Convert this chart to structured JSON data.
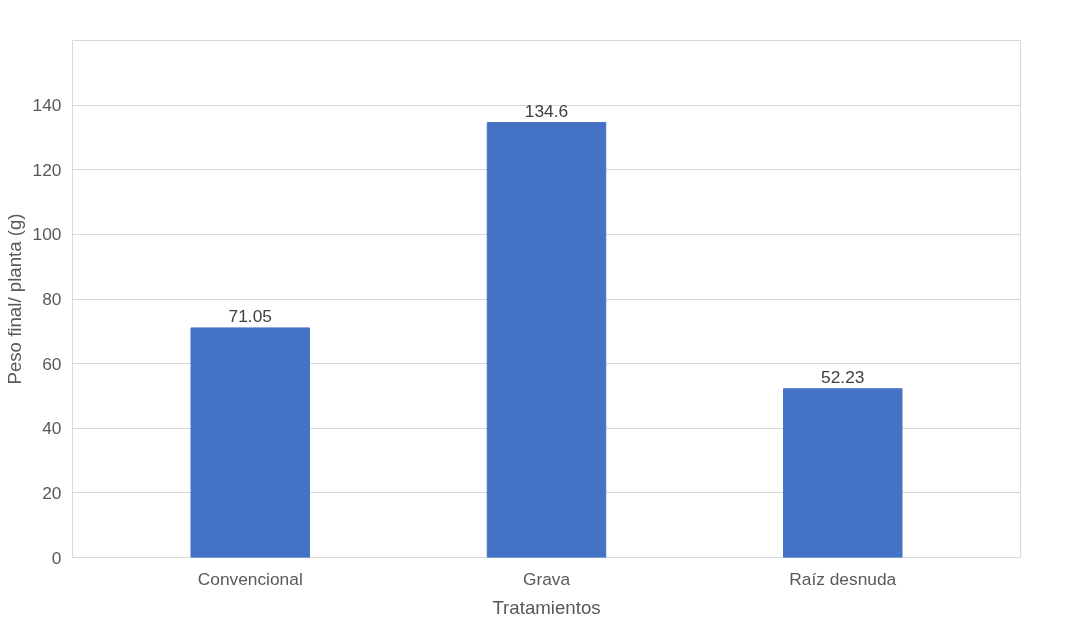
{
  "chart_data": {
    "type": "bar",
    "xlabel": "Tratamientos",
    "ylabel": "Peso final/ planta (g)",
    "categories": [
      "Convencional",
      "Grava",
      "Raíz desnuda"
    ],
    "values": [
      71.05,
      134.6,
      52.23
    ],
    "color": "#4472c4",
    "ylim": [
      0,
      160
    ],
    "yticks": [
      0,
      20,
      40,
      60,
      80,
      100,
      120,
      140,
      {
        "value": 160,
        "label": null
      }
    ],
    "grid": "y",
    "data_labels": true
  }
}
